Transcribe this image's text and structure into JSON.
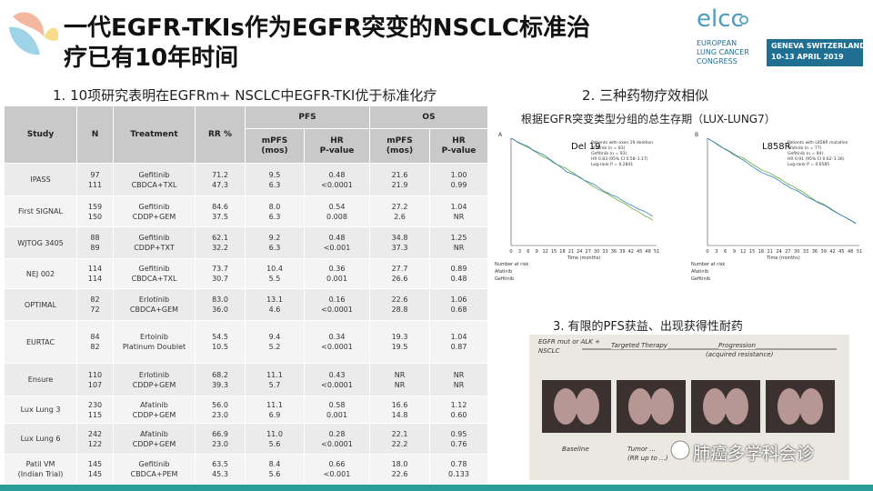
{
  "header": {
    "title_lines": [
      "一代EGFR-TKIs作为EGFR突变的NSCLC标准治",
      "疗已有10年时间"
    ],
    "logo": {
      "name": "elcc",
      "lines": [
        "EUROPEAN",
        "LUNG CANCER",
        "CONGRESS"
      ],
      "place": "GENEVA SWITZERLAND",
      "dates": "10-13 APRIL 2019"
    }
  },
  "sections": {
    "s1": "1. 10项研究表明在EGFRm+ NSCLC中EGFR-TKI优于标准化疗",
    "s2": "2. 三种药物疗效相似",
    "s2_sub": "根据EGFR突变类型分组的总生存期（LUX-LUNG7）",
    "s3": "3. 有限的PFS获益、出现获得性耐药"
  },
  "table": {
    "group_headers": [
      "PFS",
      "OS"
    ],
    "columns": [
      [
        "Study"
      ],
      [
        "N"
      ],
      [
        "Treatment"
      ],
      [
        "RR %"
      ],
      [
        "mPFS",
        "(mos)"
      ],
      [
        "HR",
        "P-value"
      ],
      [
        "mPFS",
        "(mos)"
      ],
      [
        "HR",
        "P-value"
      ]
    ],
    "rows": [
      [
        [
          "IPASS"
        ],
        [
          "97",
          "111"
        ],
        [
          "Gefitinib",
          "CBDCA+TXL"
        ],
        [
          "71.2",
          "47.3"
        ],
        [
          "9.5",
          "6.3"
        ],
        [
          "0.48",
          "<0.0001"
        ],
        [
          "21.6",
          "21.9"
        ],
        [
          "1.00",
          "0.99"
        ]
      ],
      [
        [
          "First SIGNAL"
        ],
        [
          "159",
          "150"
        ],
        [
          "Gefitinib",
          "CDDP+GEM"
        ],
        [
          "84.6",
          "37.5"
        ],
        [
          "8.0",
          "6.3"
        ],
        [
          "0.54",
          "0.008"
        ],
        [
          "27.2",
          "2.6"
        ],
        [
          "1.04",
          "NR"
        ]
      ],
      [
        [
          "WJTOG 3405"
        ],
        [
          "88",
          "89"
        ],
        [
          "Gefitinib",
          "CDDP+TXT"
        ],
        [
          "62.1",
          "32.2"
        ],
        [
          "9.2",
          "6.3"
        ],
        [
          "0.48",
          "<0.001"
        ],
        [
          "34.8",
          "37.3"
        ],
        [
          "1.25",
          "NR"
        ]
      ],
      [
        [
          "NEJ 002"
        ],
        [
          "114",
          "114"
        ],
        [
          "Gefitinib",
          "CBDCA+TXL"
        ],
        [
          "73.7",
          "30.7"
        ],
        [
          "10.4",
          "5.5"
        ],
        [
          "0.36",
          "0.001"
        ],
        [
          "27.7",
          "26.6"
        ],
        [
          "0.89",
          "0.48"
        ]
      ],
      [
        [
          "OPTIMAL"
        ],
        [
          "82",
          "72"
        ],
        [
          "Erlotinib",
          "CBDCA+GEM"
        ],
        [
          "83.0",
          "36.0"
        ],
        [
          "13.1",
          "4.6"
        ],
        [
          "0.16",
          "<0.0001"
        ],
        [
          "22.6",
          "28.8"
        ],
        [
          "1.06",
          "0.68"
        ]
      ],
      [
        [
          "EURTAC"
        ],
        [
          "84",
          "82"
        ],
        [
          "Ertoinib",
          "Platinum Doublet"
        ],
        [
          "54.5",
          "10.5"
        ],
        [
          "9.4",
          "5.2"
        ],
        [
          "0.34",
          "<0.0001"
        ],
        [
          "19.3",
          "19.5"
        ],
        [
          "1.04",
          "0.87"
        ]
      ],
      [
        [
          "Ensure"
        ],
        [
          "110",
          "107"
        ],
        [
          "Erlotinib",
          "CDDP+GEM"
        ],
        [
          "68.2",
          "39.3"
        ],
        [
          "11.1",
          "5.7"
        ],
        [
          "0.43",
          "<0.0001"
        ],
        [
          "NR",
          "NR"
        ],
        [
          "NR",
          "NR"
        ]
      ],
      [
        [
          "Lux Lung 3"
        ],
        [
          "230",
          "115"
        ],
        [
          "Afatinib",
          "CDDP+GEM"
        ],
        [
          "56.0",
          "23.0"
        ],
        [
          "11.1",
          "6.9"
        ],
        [
          "0.58",
          "0.001"
        ],
        [
          "16.6",
          "14.8"
        ],
        [
          "1.12",
          "0.60"
        ]
      ],
      [
        [
          "Lux Lung 6"
        ],
        [
          "242",
          "122"
        ],
        [
          "Afatinib",
          "CDDP+GEM"
        ],
        [
          "66.9",
          "23.0"
        ],
        [
          "11.0",
          "5.6"
        ],
        [
          "0.28",
          "<0.0001"
        ],
        [
          "22.1",
          "22.2"
        ],
        [
          "0.95",
          "0.76"
        ]
      ],
      [
        [
          "Patil VM",
          "(Indian Trial)"
        ],
        [
          "145",
          "145"
        ],
        [
          "Gefitinib",
          "CBDCA+PEM"
        ],
        [
          "63.5",
          "45.3"
        ],
        [
          "8.4",
          "5.6"
        ],
        [
          "0.66",
          "<0.001"
        ],
        [
          "18.0",
          "22.6"
        ],
        [
          "0.78",
          "0.133"
        ]
      ]
    ]
  },
  "km_charts": [
    {
      "panel": "A",
      "label": "Del 19",
      "legend": [
        "Patients with exon 19 deletion",
        "Afatinib (n = 83)",
        "Gefitinib (n = 93)",
        "HR 0.83 (95% CI 0.58–1.17)",
        "Log-rank P = 0.2841"
      ],
      "x_label": "Time (months)",
      "risk_title": "Number at risk",
      "risk_rows": [
        "Afatinib",
        "Gefitinib"
      ],
      "xticks": [
        "0",
        "3",
        "6",
        "9",
        "12",
        "15",
        "18",
        "21",
        "24",
        "27",
        "30",
        "33",
        "36",
        "39",
        "42",
        "45",
        "48",
        "51"
      ]
    },
    {
      "panel": "B",
      "label": "L858R",
      "legend": [
        "Patients with L858R mutation",
        "Afatinib (n = 77)",
        "Gefitinib (n = 94)",
        "HR 0.91 (95% CI 0.62–1.36)",
        "Log-rank P = 0.6585"
      ],
      "x_label": "Time (months)",
      "risk_title": "Number at risk",
      "risk_rows": [
        "Afatinib",
        "Gefitinib"
      ],
      "xticks": [
        "0",
        "3",
        "6",
        "9",
        "12",
        "15",
        "18",
        "21",
        "24",
        "27",
        "30",
        "33",
        "36",
        "39",
        "42",
        "45",
        "48",
        "51"
      ]
    }
  ],
  "progression": {
    "top_left": [
      "EGFR mut or ALK +",
      "NSCLC"
    ],
    "arrow1": "Targeted Therapy",
    "arrow2": [
      "Progression",
      "(acquired resistance)"
    ],
    "captions": [
      "Baseline",
      "Tumor ...",
      "(RR up to ...)"
    ]
  },
  "watermark": "肺癌多学科会诊"
}
